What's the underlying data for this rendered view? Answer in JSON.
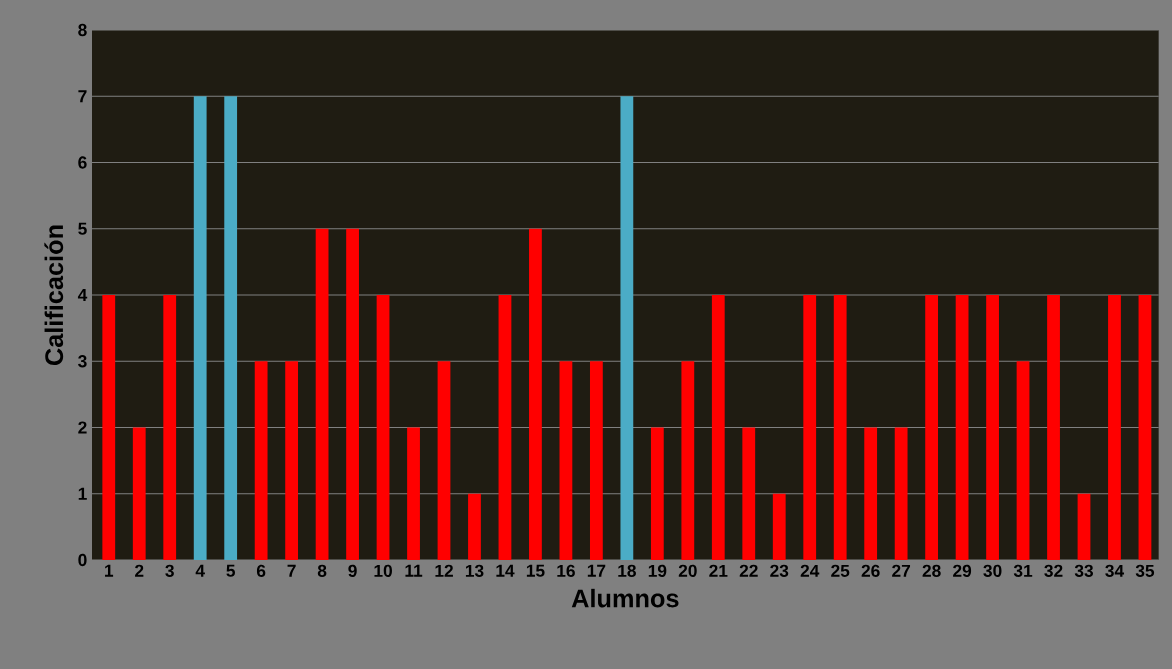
{
  "chart_data": {
    "type": "bar",
    "xlabel": "Alumnos",
    "ylabel": "Calificación",
    "categories": [
      "1",
      "2",
      "3",
      "4",
      "5",
      "6",
      "7",
      "8",
      "9",
      "10",
      "11",
      "12",
      "13",
      "14",
      "15",
      "16",
      "17",
      "18",
      "19",
      "20",
      "21",
      "22",
      "23",
      "24",
      "25",
      "26",
      "27",
      "28",
      "29",
      "30",
      "31",
      "32",
      "33",
      "34",
      "35"
    ],
    "values": [
      4,
      2,
      4,
      7,
      7,
      3,
      3,
      5,
      5,
      4,
      2,
      3,
      1,
      4,
      5,
      3,
      3,
      7,
      2,
      3,
      4,
      2,
      1,
      4,
      4,
      2,
      2,
      4,
      4,
      4,
      3,
      4,
      1,
      4,
      4
    ],
    "colors": [
      "#ff0000",
      "#ff0000",
      "#ff0000",
      "#4bacc6",
      "#4bacc6",
      "#ff0000",
      "#ff0000",
      "#ff0000",
      "#ff0000",
      "#ff0000",
      "#ff0000",
      "#ff0000",
      "#ff0000",
      "#ff0000",
      "#ff0000",
      "#ff0000",
      "#ff0000",
      "#4bacc6",
      "#ff0000",
      "#ff0000",
      "#ff0000",
      "#ff0000",
      "#ff0000",
      "#ff0000",
      "#ff0000",
      "#ff0000",
      "#ff0000",
      "#ff0000",
      "#ff0000",
      "#ff0000",
      "#ff0000",
      "#ff0000",
      "#ff0000",
      "#ff0000",
      "#ff0000"
    ],
    "ylim": [
      0,
      8
    ],
    "yticks": [
      0,
      1,
      2,
      3,
      4,
      5,
      6,
      7,
      8
    ],
    "grid": "y"
  }
}
